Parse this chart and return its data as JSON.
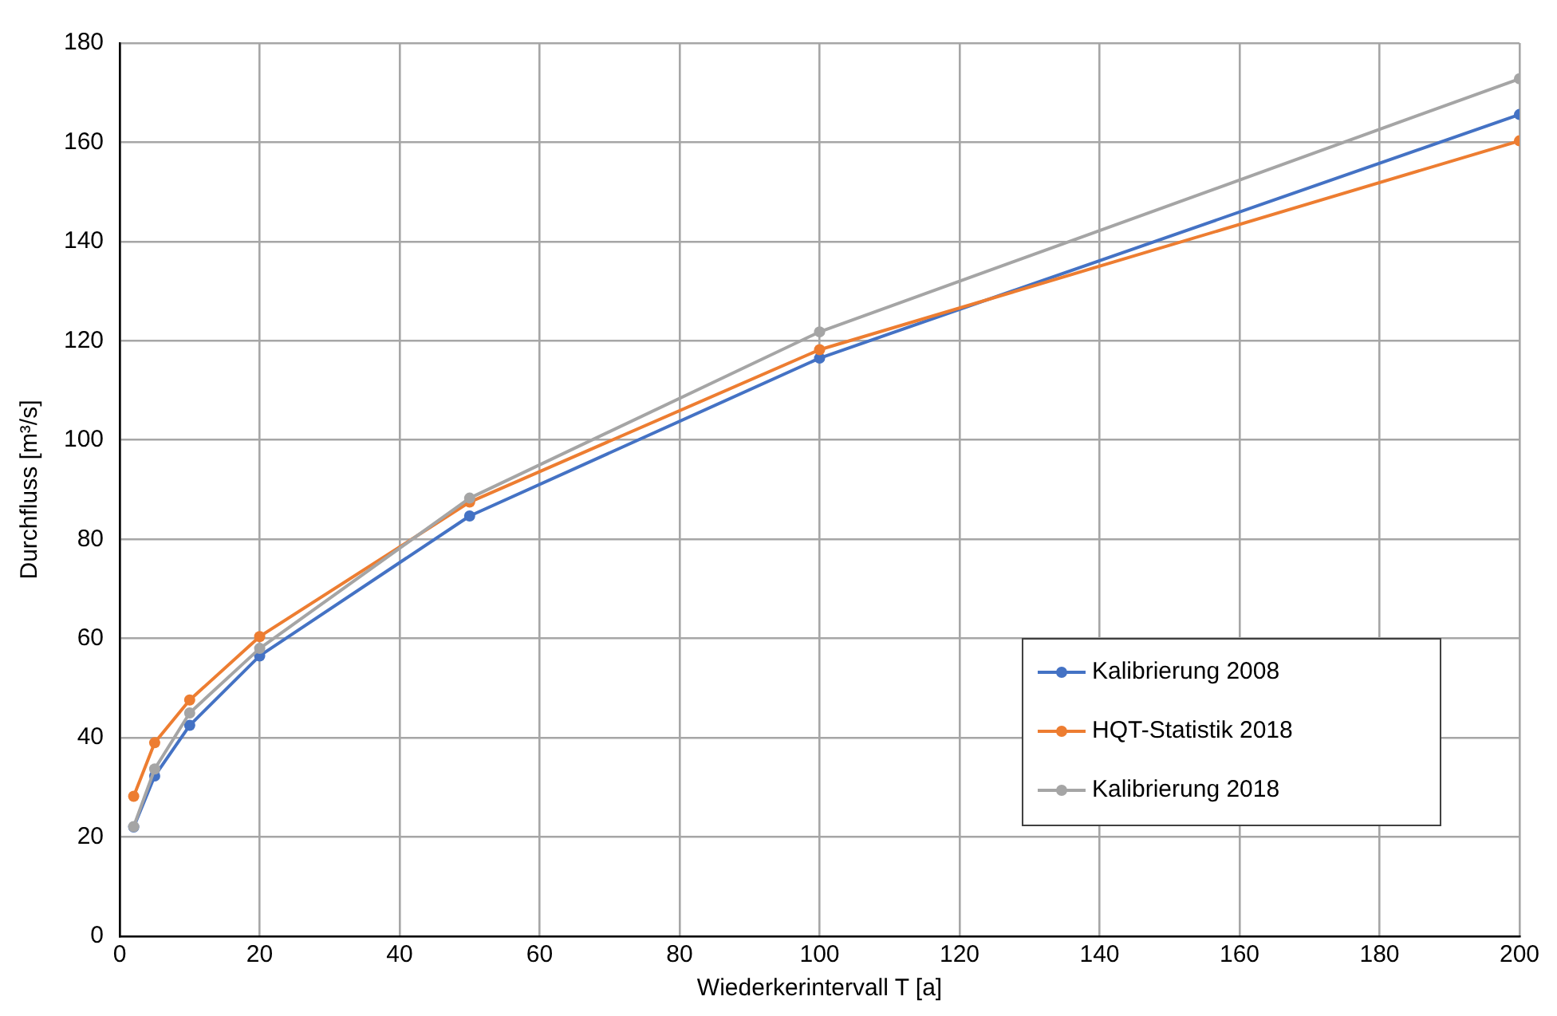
{
  "chart_data": {
    "type": "line",
    "xlabel": "Wiederkerintervall T [a]",
    "ylabel": "Durchfluss [m³/s]",
    "x": [
      2,
      5,
      10,
      20,
      50,
      100,
      200
    ],
    "series": [
      {
        "name": "Kalibrierung 2008",
        "color": "#4472c4",
        "values": [
          22,
          32.3,
          42.5,
          56.5,
          84.7,
          116.5,
          165.6
        ]
      },
      {
        "name": "HQT-Statistik 2018",
        "color": "#ed7d31",
        "values": [
          28.2,
          39,
          47.6,
          60.4,
          87.5,
          118.2,
          160.3
        ]
      },
      {
        "name": "Kalibrierung 2018",
        "color": "#a5a5a5",
        "values": [
          22.1,
          33.7,
          45,
          58,
          88.3,
          121.8,
          172.8
        ]
      }
    ],
    "xlim": [
      0,
      200
    ],
    "xticks": [
      0,
      20,
      40,
      60,
      80,
      100,
      120,
      140,
      160,
      180,
      200
    ],
    "ylim": [
      0,
      180
    ],
    "yticks": [
      0,
      20,
      40,
      60,
      80,
      100,
      120,
      140,
      160,
      180
    ],
    "grid": true,
    "legend": "bottom right",
    "marker": "circle",
    "line_style": "solid"
  }
}
